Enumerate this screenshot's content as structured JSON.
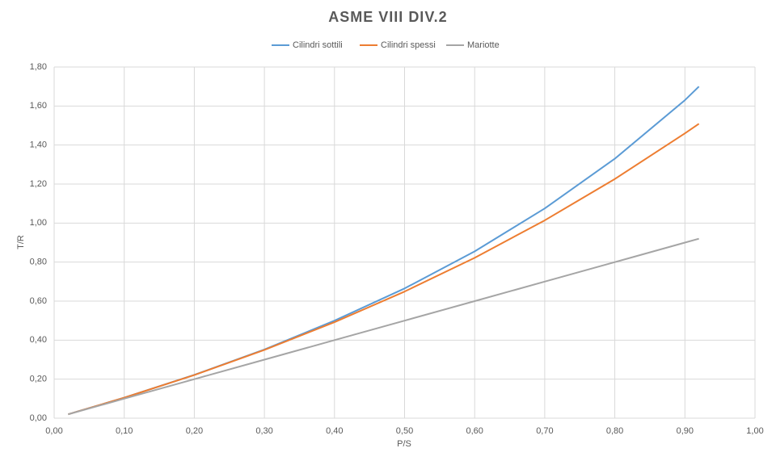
{
  "chart_data": {
    "type": "line",
    "title": "ASME VIII DIV.2",
    "x_label": "P/S",
    "y_label": "T/R",
    "x": [
      0.02,
      0.1,
      0.2,
      0.3,
      0.4,
      0.5,
      0.6,
      0.7,
      0.8,
      0.9,
      0.92
    ],
    "series": [
      {
        "name": "Cilindri sottili",
        "color": "#5b9bd5",
        "values": [
          0.02,
          0.105,
          0.222,
          0.352,
          0.5,
          0.665,
          0.855,
          1.075,
          1.33,
          1.63,
          1.7
        ]
      },
      {
        "name": "Cilindri spessi",
        "color": "#ed7d31",
        "values": [
          0.02,
          0.105,
          0.221,
          0.35,
          0.492,
          0.649,
          0.822,
          1.014,
          1.226,
          1.46,
          1.509
        ]
      },
      {
        "name": "Mariotte",
        "color": "#a5a5a5",
        "values": [
          0.02,
          0.1,
          0.2,
          0.3,
          0.4,
          0.5,
          0.6,
          0.7,
          0.8,
          0.9,
          0.92
        ]
      }
    ],
    "xlim": [
      0,
      1
    ],
    "xticks": [
      {
        "value": 0,
        "label": "0,00"
      },
      {
        "value": 0.1,
        "label": "0,10"
      },
      {
        "value": 0.2,
        "label": "0,20"
      },
      {
        "value": 0.3,
        "label": "0,30"
      },
      {
        "value": 0.4,
        "label": "0,40"
      },
      {
        "value": 0.5,
        "label": "0,50"
      },
      {
        "value": 0.6,
        "label": "0,60"
      },
      {
        "value": 0.7,
        "label": "0,70"
      },
      {
        "value": 0.8,
        "label": "0,80"
      },
      {
        "value": 0.9,
        "label": "0,90"
      },
      {
        "value": 1,
        "label": "1,00"
      }
    ],
    "ylim": [
      0,
      1.8
    ],
    "yticks": [
      {
        "value": 0,
        "label": "0,00"
      },
      {
        "value": 0.2,
        "label": "0,20"
      },
      {
        "value": 0.4,
        "label": "0,40"
      },
      {
        "value": 0.6,
        "label": "0,60"
      },
      {
        "value": 0.8,
        "label": "0,80"
      },
      {
        "value": 1,
        "label": "1,00"
      },
      {
        "value": 1.2,
        "label": "1,20"
      },
      {
        "value": 1.4,
        "label": "1,40"
      },
      {
        "value": 1.6,
        "label": "1,60"
      },
      {
        "value": 1.8,
        "label": "1,80"
      }
    ],
    "grid": true,
    "legend": "top"
  }
}
